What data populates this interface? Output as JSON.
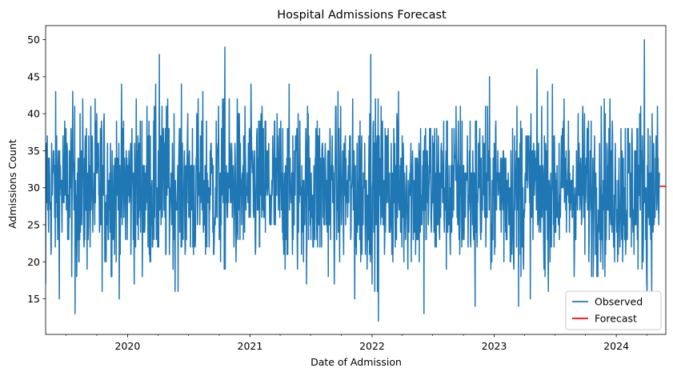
{
  "chart_data": {
    "type": "line",
    "title": "Hospital Admissions Forecast",
    "xlabel": "Date of Admission",
    "ylabel": "Admissions Count",
    "x_range": [
      "2019-05-01",
      "2024-05-28"
    ],
    "ylim": [
      10.2,
      51.9
    ],
    "yticks": [
      15,
      20,
      25,
      30,
      35,
      40,
      45,
      50
    ],
    "xticks": [
      {
        "label": "2020",
        "date": "2020-01-01"
      },
      {
        "label": "2021",
        "date": "2021-01-01"
      },
      {
        "label": "2022",
        "date": "2022-01-01"
      },
      {
        "label": "2023",
        "date": "2023-01-01"
      },
      {
        "label": "2024",
        "date": "2024-01-01"
      }
    ],
    "legend_position": "bottom-right",
    "colors": {
      "observed": "#1f77b4",
      "forecast": "#ff0000"
    },
    "series": [
      {
        "name": "Observed",
        "kind": "daily noisy count (approximate envelope)",
        "start": "2019-05-01",
        "end": "2024-05-10",
        "mean": 30,
        "typical_range": [
          22,
          38
        ],
        "min": 12,
        "max": 50,
        "notable_points": [
          {
            "date": "2019-05-01",
            "value": 17
          },
          {
            "date": "2019-07-28",
            "value": 13
          },
          {
            "date": "2020-04-05",
            "value": 48
          },
          {
            "date": "2020-10-18",
            "value": 49
          },
          {
            "date": "2021-11-10",
            "value": 15
          },
          {
            "date": "2021-12-28",
            "value": 48
          },
          {
            "date": "2022-01-20",
            "value": 12
          },
          {
            "date": "2022-06-05",
            "value": 13
          },
          {
            "date": "2022-11-05",
            "value": 14
          },
          {
            "date": "2023-03-15",
            "value": 14
          },
          {
            "date": "2024-03-25",
            "value": 50
          },
          {
            "date": "2024-04-02",
            "value": 16
          }
        ]
      },
      {
        "name": "Forecast",
        "start": "2024-05-10",
        "end": "2024-05-28",
        "values": [
          30.2,
          30.2,
          30.2
        ]
      }
    ]
  }
}
